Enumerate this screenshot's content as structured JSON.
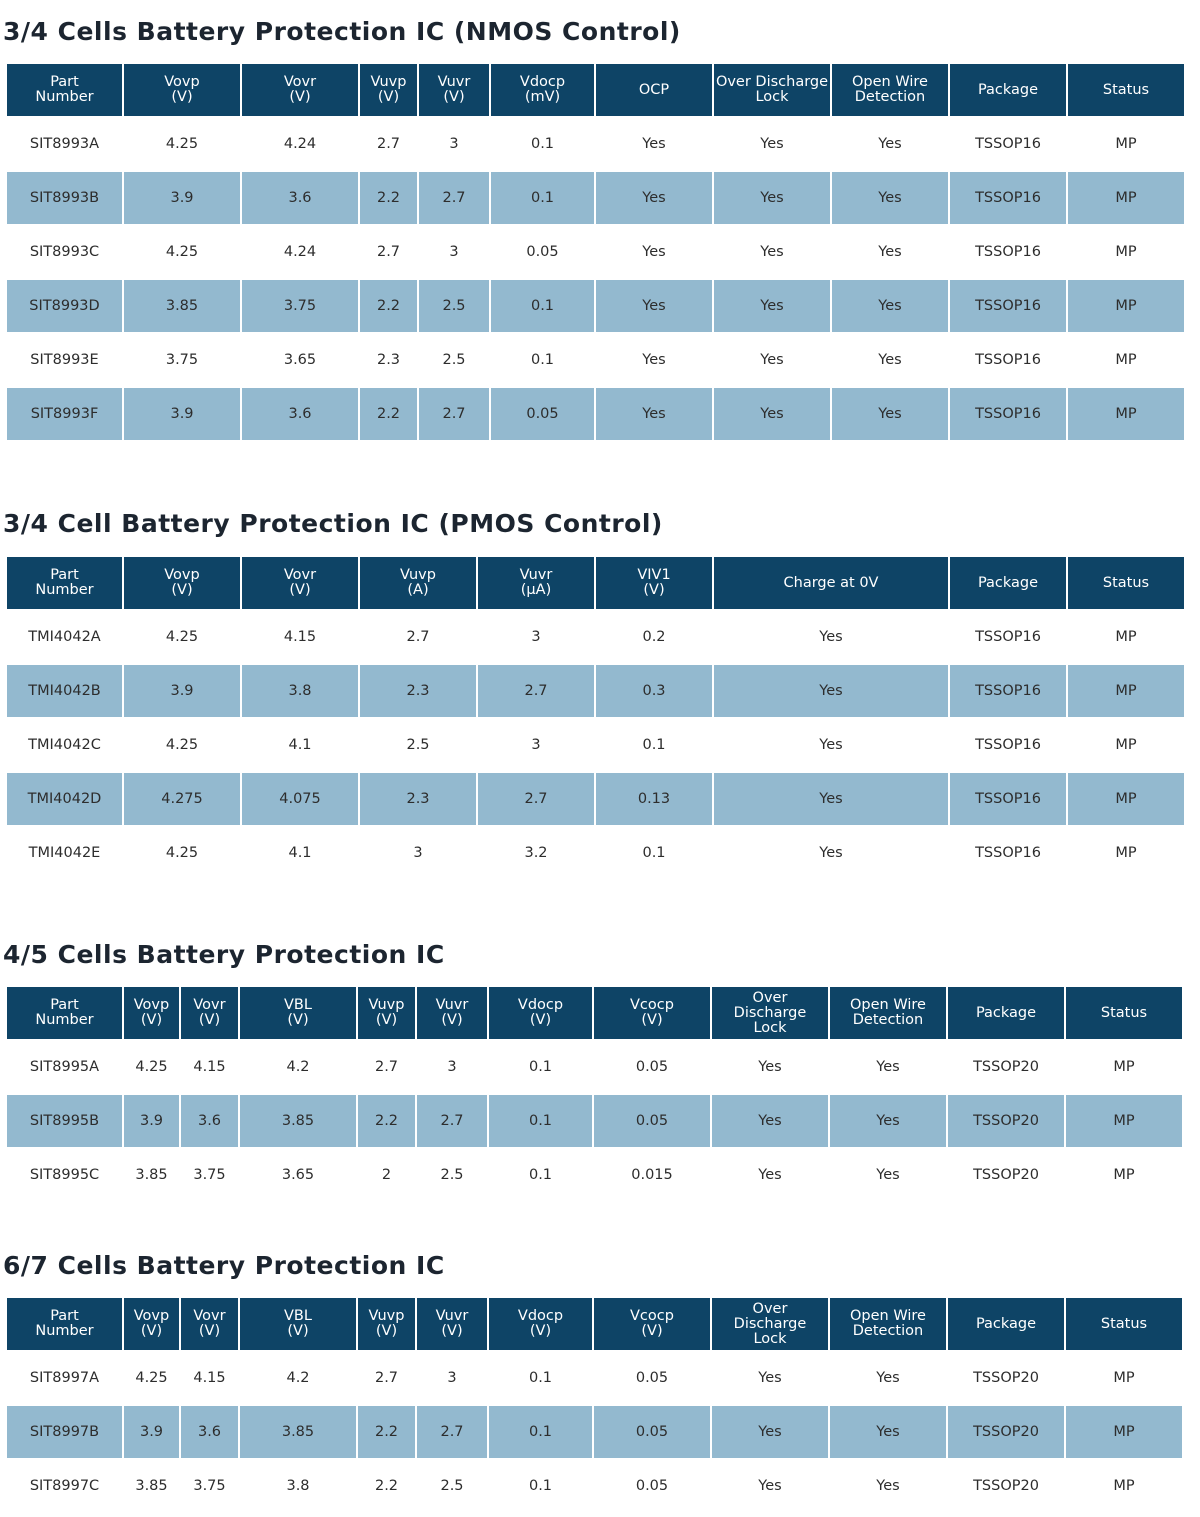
{
  "sections": [
    {
      "title": "3/4 Cells Battery Protection IC (NMOS Control)",
      "headers": [
        [
          "Part",
          "Number"
        ],
        [
          "Vovp",
          "(V)"
        ],
        [
          "Vovr",
          "(V)"
        ],
        [
          "Vuvp",
          "(V)"
        ],
        [
          "Vuvr",
          "(V)"
        ],
        [
          "Vdocp",
          "(mV)"
        ],
        [
          "OCP"
        ],
        [
          "Over Discharge",
          "Lock"
        ],
        [
          "Open Wire",
          "Detection"
        ],
        [
          "Package"
        ],
        [
          "Status"
        ]
      ],
      "rows": [
        [
          "SIT8993A",
          "4.25",
          "4.24",
          "2.7",
          "3",
          "0.1",
          "Yes",
          "Yes",
          "Yes",
          "TSSOP16",
          "MP"
        ],
        [
          "SIT8993B",
          "3.9",
          "3.6",
          "2.2",
          "2.7",
          "0.1",
          "Yes",
          "Yes",
          "Yes",
          "TSSOP16",
          "MP"
        ],
        [
          "SIT8993C",
          "4.25",
          "4.24",
          "2.7",
          "3",
          "0.05",
          "Yes",
          "Yes",
          "Yes",
          "TSSOP16",
          "MP"
        ],
        [
          "SIT8993D",
          "3.85",
          "3.75",
          "2.2",
          "2.5",
          "0.1",
          "Yes",
          "Yes",
          "Yes",
          "TSSOP16",
          "MP"
        ],
        [
          "SIT8993E",
          "3.75",
          "3.65",
          "2.3",
          "2.5",
          "0.1",
          "Yes",
          "Yes",
          "Yes",
          "TSSOP16",
          "MP"
        ],
        [
          "SIT8993F",
          "3.9",
          "3.6",
          "2.2",
          "2.7",
          "0.05",
          "Yes",
          "Yes",
          "Yes",
          "TSSOP16",
          "MP"
        ]
      ]
    },
    {
      "title": "3/4 Cell Battery Protection IC (PMOS Control)",
      "headers": [
        [
          "Part",
          "Number"
        ],
        [
          "Vovp",
          "(V)"
        ],
        [
          "Vovr",
          "(V)"
        ],
        [
          "Vuvp",
          "(A)"
        ],
        [
          "Vuvr",
          "(μA)"
        ],
        [
          "VIV1",
          "(V)"
        ],
        [
          "Charge at 0V"
        ],
        [
          "Package"
        ],
        [
          "Status"
        ]
      ],
      "rows": [
        [
          "TMI4042A",
          "4.25",
          "4.15",
          "2.7",
          "3",
          "0.2",
          "Yes",
          "TSSOP16",
          "MP"
        ],
        [
          "TMI4042B",
          "3.9",
          "3.8",
          "2.3",
          "2.7",
          "0.3",
          "Yes",
          "TSSOP16",
          "MP"
        ],
        [
          "TMI4042C",
          "4.25",
          "4.1",
          "2.5",
          "3",
          "0.1",
          "Yes",
          "TSSOP16",
          "MP"
        ],
        [
          "TMI4042D",
          "4.275",
          "4.075",
          "2.3",
          "2.7",
          "0.13",
          "Yes",
          "TSSOP16",
          "MP"
        ],
        [
          "TMI4042E",
          "4.25",
          "4.1",
          "3",
          "3.2",
          "0.1",
          "Yes",
          "TSSOP16",
          "MP"
        ]
      ]
    },
    {
      "title": "4/5 Cells Battery Protection IC",
      "headers": [
        [
          "Part",
          "Number"
        ],
        [
          "Vovp",
          "(V)"
        ],
        [
          "Vovr",
          "(V)"
        ],
        [
          "VBL",
          "(V)"
        ],
        [
          "Vuvp",
          "(V)"
        ],
        [
          "Vuvr",
          "(V)"
        ],
        [
          "Vdocp",
          "(V)"
        ],
        [
          "Vcocp",
          "(V)"
        ],
        [
          "Over",
          "Discharge",
          "Lock"
        ],
        [
          "Open Wire",
          "Detection"
        ],
        [
          "Package"
        ],
        [
          "Status"
        ]
      ],
      "rows": [
        [
          "SIT8995A",
          "4.25",
          "4.15",
          "4.2",
          "2.7",
          "3",
          "0.1",
          "0.05",
          "Yes",
          "Yes",
          "TSSOP20",
          "MP"
        ],
        [
          "SIT8995B",
          "3.9",
          "3.6",
          "3.85",
          "2.2",
          "2.7",
          "0.1",
          "0.05",
          "Yes",
          "Yes",
          "TSSOP20",
          "MP"
        ],
        [
          "SIT8995C",
          "3.85",
          "3.75",
          "3.65",
          "2",
          "2.5",
          "0.1",
          "0.015",
          "Yes",
          "Yes",
          "TSSOP20",
          "MP"
        ]
      ]
    },
    {
      "title": "6/7 Cells Battery Protection IC",
      "headers": [
        [
          "Part",
          "Number"
        ],
        [
          "Vovp",
          "(V)"
        ],
        [
          "Vovr",
          "(V)"
        ],
        [
          "VBL",
          "(V)"
        ],
        [
          "Vuvp",
          "(V)"
        ],
        [
          "Vuvr",
          "(V)"
        ],
        [
          "Vdocp",
          "(V)"
        ],
        [
          "Vcocp",
          "(V)"
        ],
        [
          "Over",
          "Discharge",
          "Lock"
        ],
        [
          "Open Wire",
          "Detection"
        ],
        [
          "Package"
        ],
        [
          "Status"
        ]
      ],
      "rows": [
        [
          "SIT8997A",
          "4.25",
          "4.15",
          "4.2",
          "2.7",
          "3",
          "0.1",
          "0.05",
          "Yes",
          "Yes",
          "TSSOP20",
          "MP"
        ],
        [
          "SIT8997B",
          "3.9",
          "3.6",
          "3.85",
          "2.2",
          "2.7",
          "0.1",
          "0.05",
          "Yes",
          "Yes",
          "TSSOP20",
          "MP"
        ],
        [
          "SIT8997C",
          "3.85",
          "3.75",
          "3.8",
          "2.2",
          "2.5",
          "0.1",
          "0.05",
          "Yes",
          "Yes",
          "TSSOP20",
          "MP"
        ]
      ]
    }
  ],
  "colors": {
    "header_bg": "#0e4466",
    "header_text": "#ffffff",
    "shaded_row": "#93b9cf",
    "title_text": "#1c2530"
  }
}
